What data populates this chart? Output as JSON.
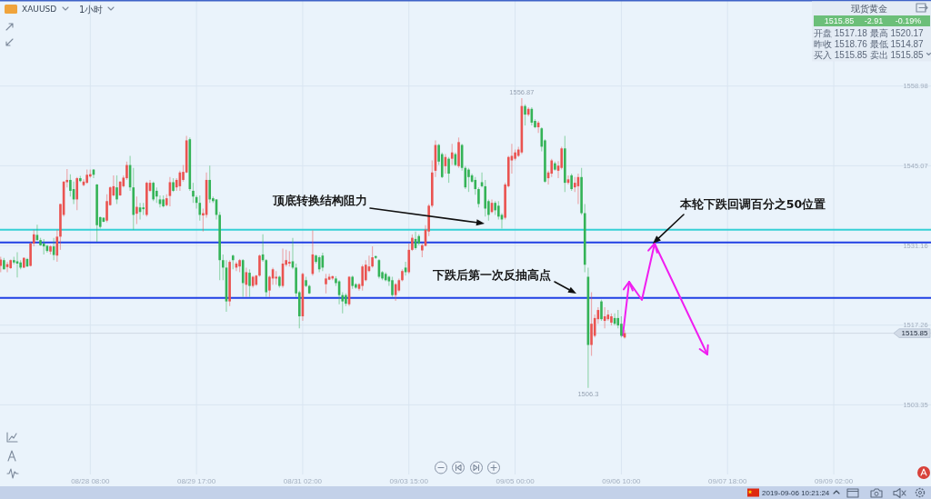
{
  "chart_data": {
    "type": "candlestick",
    "categories": [
      null,
      null,
      null,
      null,
      null,
      null,
      null,
      null,
      null,
      null,
      null,
      null,
      null,
      null,
      null,
      null,
      null,
      null,
      null,
      null,
      null,
      null,
      null,
      null,
      null,
      null,
      null,
      "08/28 08:00",
      null,
      null,
      null,
      null,
      null,
      null,
      null,
      null,
      null,
      null,
      null,
      null,
      null,
      null,
      null,
      null,
      null,
      null,
      null,
      null,
      null,
      null,
      null,
      null,
      null,
      null,
      null,
      null,
      null,
      null,
      null,
      "08/29 17:00",
      null,
      null,
      null,
      null,
      null,
      null,
      null,
      null,
      null,
      null,
      null,
      null,
      null,
      null,
      null,
      null,
      null,
      null,
      null,
      null,
      null,
      null,
      null,
      null,
      null,
      null,
      null,
      null,
      null,
      null,
      null,
      "08/31 02:00",
      null,
      null,
      null,
      null,
      null,
      null,
      null,
      null,
      null,
      null,
      null,
      null,
      null,
      null,
      null,
      null,
      null,
      null,
      null,
      null,
      null,
      null,
      null,
      null,
      null,
      null,
      null,
      null,
      null,
      null,
      null,
      "09/03 15:00",
      null,
      null,
      null,
      null,
      null,
      null,
      null,
      null,
      null,
      null,
      null,
      null,
      null,
      null,
      null,
      null,
      null,
      null,
      null,
      null,
      null,
      null,
      null,
      null,
      null,
      null,
      null,
      null,
      null,
      null,
      null,
      "09/05 00:00",
      null,
      null,
      null,
      null,
      null,
      null,
      null,
      null,
      null,
      null,
      null,
      null,
      null,
      null,
      null,
      null,
      null,
      null,
      null,
      null,
      null,
      null,
      null,
      null,
      null,
      null,
      null,
      null,
      null,
      null,
      null,
      "09/06 10:00",
      null,
      null,
      null,
      null,
      null,
      null,
      null,
      null,
      null,
      null,
      null,
      null,
      null,
      null,
      null,
      null,
      null,
      null,
      null,
      null,
      null,
      null,
      null,
      null,
      null,
      null,
      null,
      null,
      null,
      null,
      null,
      "09/07 18:00",
      null,
      null,
      null,
      null,
      null,
      null,
      null,
      null,
      null,
      null,
      null,
      null,
      null,
      null,
      null,
      null,
      null,
      null,
      null,
      null,
      null,
      null,
      null,
      null,
      null,
      null,
      null,
      null,
      null,
      null,
      null,
      "09/09 02:00",
      null,
      null,
      null,
      null,
      null,
      null,
      null,
      null,
      null,
      null,
      null,
      null,
      null,
      null,
      null,
      null,
      null,
      null,
      null,
      null,
      null,
      null,
      null,
      null,
      null,
      null,
      null,
      null,
      null
    ],
    "ohlc": [
      [
        1527.6,
        1529.2,
        1526.5,
        1528.7
      ],
      [
        1528.6,
        1529.0,
        1527.0,
        1527.0
      ],
      [
        1527.4,
        1528.3,
        1526.5,
        1527.9
      ],
      [
        1527.2,
        1528.7,
        1527.1,
        1528.6
      ],
      [
        1528.6,
        1529.2,
        1527.9,
        1528.2
      ],
      [
        1528.4,
        1530.0,
        1525.6,
        1528.0
      ],
      [
        1528.2,
        1528.6,
        1527.0,
        1527.3
      ],
      [
        1527.3,
        1529.1,
        1527.2,
        1529.0
      ],
      [
        1528.8,
        1529.0,
        1527.4,
        1527.5
      ],
      [
        1527.6,
        1531.8,
        1527.5,
        1531.5
      ],
      [
        1531.5,
        1533.9,
        1531.0,
        1533.1
      ],
      [
        1533.0,
        1534.8,
        1532.0,
        1532.1
      ],
      [
        1532.1,
        1532.5,
        1531.1,
        1531.2
      ],
      [
        1531.5,
        1532.3,
        1529.6,
        1531.0
      ],
      [
        1531.1,
        1531.3,
        1529.9,
        1530.2
      ],
      [
        1530.1,
        1531.2,
        1529.6,
        1531.0
      ],
      [
        1531.0,
        1532.5,
        1528.6,
        1529.5
      ],
      [
        1529.4,
        1533.9,
        1528.3,
        1532.7
      ],
      [
        1532.7,
        1538.4,
        1530.4,
        1538.4
      ],
      [
        1536.5,
        1542.4,
        1536.2,
        1542.3
      ],
      [
        1542.2,
        1544.5,
        1541.3,
        1542.6
      ],
      [
        1542.6,
        1543.6,
        1539.7,
        1540.7
      ],
      [
        1541.0,
        1542.3,
        1538.4,
        1539.2
      ],
      [
        1539.2,
        1543.1,
        1537.3,
        1542.9
      ],
      [
        1542.9,
        1543.3,
        1542.2,
        1542.4
      ],
      [
        1541.7,
        1542.7,
        1541.5,
        1542.3
      ],
      [
        1542.1,
        1544.4,
        1541.9,
        1543.5
      ],
      [
        1543.2,
        1544.4,
        1543.0,
        1543.6
      ],
      [
        1544.4,
        1544.5,
        1542.9,
        1543.5
      ],
      [
        1541.8,
        1541.9,
        1531.8,
        1534.7
      ],
      [
        1536.1,
        1536.2,
        1534.1,
        1534.4
      ],
      [
        1536.0,
        1536.1,
        1535.2,
        1535.3
      ],
      [
        1535.5,
        1540.1,
        1535.2,
        1538.9
      ],
      [
        1538.2,
        1541.5,
        1538.1,
        1541.3
      ],
      [
        1539.9,
        1543.4,
        1539.7,
        1541.5
      ],
      [
        1541.3,
        1543.4,
        1538.4,
        1539.2
      ],
      [
        1539.9,
        1542.4,
        1539.8,
        1542.3
      ],
      [
        1541.5,
        1543.4,
        1541.3,
        1543.0
      ],
      [
        1542.9,
        1545.8,
        1542.6,
        1545.2
      ],
      [
        1545.2,
        1546.8,
        1540.7,
        1541.3
      ],
      [
        1541.3,
        1544.7,
        1533.9,
        1536.5
      ],
      [
        1536.7,
        1539.7,
        1534.9,
        1537.9
      ],
      [
        1537.8,
        1538.6,
        1535.7,
        1537.0
      ],
      [
        1537.8,
        1538.6,
        1536.5,
        1537.5
      ],
      [
        1536.5,
        1542.3,
        1536.2,
        1542.1
      ],
      [
        1540.7,
        1542.6,
        1540.5,
        1542.1
      ],
      [
        1542.1,
        1542.3,
        1538.9,
        1539.2
      ],
      [
        1540.7,
        1541.3,
        1538.6,
        1539.7
      ],
      [
        1539.2,
        1539.9,
        1537.8,
        1538.4
      ],
      [
        1539.2,
        1539.9,
        1537.8,
        1538.0
      ],
      [
        1538.2,
        1540.1,
        1538.0,
        1539.4
      ],
      [
        1539.8,
        1543.1,
        1538.0,
        1542.2
      ],
      [
        1542.2,
        1542.9,
        1540.5,
        1540.7
      ],
      [
        1541.3,
        1542.9,
        1540.7,
        1542.6
      ],
      [
        1541.5,
        1544.2,
        1540.7,
        1543.9
      ],
      [
        1542.6,
        1545.2,
        1542.3,
        1544.0
      ],
      [
        1543.9,
        1550.3,
        1543.8,
        1549.5
      ],
      [
        1549.7,
        1550.0,
        1540.7,
        1541.0
      ],
      [
        1540.7,
        1542.1,
        1538.6,
        1539.7
      ],
      [
        1539.6,
        1539.9,
        1537.6,
        1538.6
      ],
      [
        1538.6,
        1539.9,
        1535.5,
        1536.5
      ],
      [
        1536.4,
        1537.6,
        1533.6,
        1536.8
      ],
      [
        1536.5,
        1543.9,
        1536.0,
        1542.6
      ],
      [
        1542.6,
        1545.1,
        1538.6,
        1539.2
      ],
      [
        1539.4,
        1539.7,
        1538.6,
        1538.9
      ],
      [
        1539.2,
        1539.2,
        1535.7,
        1536.5
      ],
      [
        1536.5,
        1537.0,
        1525.1,
        1528.6
      ],
      [
        1528.6,
        1529.6,
        1525.1,
        1527.3
      ],
      [
        1527.3,
        1528.6,
        1519.6,
        1521.4
      ],
      [
        1521.4,
        1528.6,
        1520.6,
        1528.3
      ],
      [
        1529.4,
        1529.6,
        1527.0,
        1528.6
      ],
      [
        1527.3,
        1528.3,
        1526.7,
        1528.0
      ],
      [
        1527.5,
        1528.8,
        1526.5,
        1528.6
      ],
      [
        1528.6,
        1528.8,
        1522.2,
        1524.6
      ],
      [
        1524.3,
        1527.3,
        1522.2,
        1526.5
      ],
      [
        1526.4,
        1527.0,
        1522.2,
        1524.1
      ],
      [
        1524.1,
        1525.9,
        1523.8,
        1525.7
      ],
      [
        1524.3,
        1526.0,
        1524.1,
        1525.9
      ],
      [
        1525.9,
        1529.6,
        1525.7,
        1529.4
      ],
      [
        1529.6,
        1533.1,
        1528.3,
        1528.6
      ],
      [
        1528.6,
        1528.8,
        1522.2,
        1523.0
      ],
      [
        1523.3,
        1525.9,
        1522.2,
        1525.7
      ],
      [
        1525.4,
        1527.3,
        1524.3,
        1527.0
      ],
      [
        1525.4,
        1526.7,
        1524.3,
        1525.7
      ],
      [
        1525.7,
        1525.9,
        1523.8,
        1524.1
      ],
      [
        1524.1,
        1530.6,
        1523.8,
        1528.0
      ],
      [
        1527.8,
        1530.4,
        1527.5,
        1528.6
      ],
      [
        1528.0,
        1530.2,
        1527.5,
        1528.3
      ],
      [
        1528.4,
        1532.5,
        1527.0,
        1527.3
      ],
      [
        1527.3,
        1528.0,
        1522.2,
        1522.8
      ],
      [
        1523.0,
        1523.3,
        1516.7,
        1518.8
      ],
      [
        1518.8,
        1526.4,
        1518.0,
        1526.2
      ],
      [
        1525.1,
        1525.7,
        1523.9,
        1524.1
      ],
      [
        1524.1,
        1524.3,
        1522.7,
        1522.8
      ],
      [
        1526.2,
        1533.8,
        1525.9,
        1529.6
      ],
      [
        1529.4,
        1529.6,
        1528.0,
        1528.3
      ],
      [
        1529.1,
        1529.4,
        1526.5,
        1527.0
      ],
      [
        1529.4,
        1529.9,
        1526.7,
        1527.3
      ],
      [
        1524.4,
        1526.2,
        1522.8,
        1525.4
      ],
      [
        1525.2,
        1526.2,
        1525.1,
        1525.7
      ],
      [
        1525.4,
        1525.9,
        1525.1,
        1525.8
      ],
      [
        1525.4,
        1525.8,
        1524.1,
        1524.6
      ],
      [
        1524.9,
        1525.1,
        1520.9,
        1522.5
      ],
      [
        1522.5,
        1523.0,
        1519.3,
        1521.4
      ],
      [
        1522.5,
        1522.8,
        1520.6,
        1521.0
      ],
      [
        1520.9,
        1525.8,
        1520.6,
        1525.7
      ],
      [
        1525.7,
        1525.9,
        1523.6,
        1524.1
      ],
      [
        1524.4,
        1524.6,
        1523.6,
        1523.8
      ],
      [
        1523.6,
        1524.6,
        1523.3,
        1524.4
      ],
      [
        1524.1,
        1527.8,
        1523.3,
        1527.5
      ],
      [
        1525.1,
        1528.6,
        1524.9,
        1527.8
      ],
      [
        1526.7,
        1529.4,
        1526.5,
        1527.5
      ],
      [
        1527.5,
        1531.0,
        1527.3,
        1529.1
      ],
      [
        1529.3,
        1529.4,
        1528.8,
        1529.0
      ],
      [
        1528.6,
        1528.8,
        1525.4,
        1525.7
      ],
      [
        1526.5,
        1526.7,
        1525.1,
        1525.4
      ],
      [
        1526.2,
        1526.5,
        1524.9,
        1525.1
      ],
      [
        1525.7,
        1525.9,
        1524.1,
        1524.9
      ],
      [
        1525.1,
        1525.7,
        1522.2,
        1522.5
      ],
      [
        1522.5,
        1524.6,
        1521.5,
        1524.4
      ],
      [
        1523.3,
        1525.4,
        1523.0,
        1525.1
      ],
      [
        1525.1,
        1527.0,
        1524.9,
        1526.7
      ],
      [
        1527.3,
        1528.3,
        1525.9,
        1526.5
      ],
      [
        1526.5,
        1531.5,
        1526.2,
        1530.4
      ],
      [
        1530.4,
        1533.1,
        1530.2,
        1532.5
      ],
      [
        1532.3,
        1533.6,
        1530.4,
        1530.7
      ],
      [
        1532.8,
        1533.1,
        1531.2,
        1531.5
      ],
      [
        1530.3,
        1531.5,
        1529.1,
        1531.2
      ],
      [
        1531.1,
        1534.7,
        1531.0,
        1533.9
      ],
      [
        1533.6,
        1538.4,
        1532.8,
        1538.1
      ],
      [
        1538.1,
        1546.0,
        1537.8,
        1543.9
      ],
      [
        1544.2,
        1549.5,
        1543.1,
        1548.7
      ],
      [
        1548.7,
        1548.9,
        1545.2,
        1545.8
      ],
      [
        1547.1,
        1547.4,
        1542.9,
        1543.1
      ],
      [
        1545.0,
        1547.1,
        1543.7,
        1546.6
      ],
      [
        1546.3,
        1546.6,
        1542.1,
        1543.7
      ],
      [
        1546.3,
        1548.9,
        1545.2,
        1547.4
      ],
      [
        1547.1,
        1547.4,
        1545.0,
        1545.2
      ],
      [
        1545.0,
        1550.0,
        1544.7,
        1549.2
      ],
      [
        1548.7,
        1548.9,
        1544.2,
        1544.7
      ],
      [
        1544.7,
        1545.0,
        1541.0,
        1541.3
      ],
      [
        1544.4,
        1544.7,
        1540.5,
        1543.1
      ],
      [
        1543.4,
        1543.7,
        1542.1,
        1542.3
      ],
      [
        1542.6,
        1543.1,
        1540.0,
        1541.0
      ],
      [
        1541.0,
        1541.3,
        1537.8,
        1538.4
      ],
      [
        1542.2,
        1543.9,
        1541.3,
        1541.5
      ],
      [
        1541.5,
        1542.6,
        1536.2,
        1537.6
      ],
      [
        1538.9,
        1539.2,
        1535.5,
        1536.5
      ],
      [
        1537.0,
        1539.2,
        1536.8,
        1538.6
      ],
      [
        1538.6,
        1538.9,
        1536.5,
        1537.3
      ],
      [
        1538.1,
        1538.9,
        1535.7,
        1536.2
      ],
      [
        1536.5,
        1536.8,
        1534.1,
        1535.7
      ],
      [
        1536.0,
        1542.1,
        1535.7,
        1541.8
      ],
      [
        1541.5,
        1546.8,
        1541.3,
        1546.6
      ],
      [
        1546.0,
        1548.9,
        1543.7,
        1546.8
      ],
      [
        1546.3,
        1547.9,
        1546.0,
        1547.4
      ],
      [
        1546.8,
        1548.4,
        1546.6,
        1547.9
      ],
      [
        1547.4,
        1556.87,
        1547.1,
        1555.5
      ],
      [
        1555.5,
        1555.8,
        1552.1,
        1554.0
      ],
      [
        1554.0,
        1555.3,
        1553.7,
        1555.0
      ],
      [
        1555.0,
        1555.3,
        1552.1,
        1552.6
      ],
      [
        1552.9,
        1553.2,
        1551.6,
        1551.8
      ],
      [
        1551.8,
        1552.9,
        1550.8,
        1552.6
      ],
      [
        1551.6,
        1551.8,
        1547.6,
        1548.4
      ],
      [
        1549.5,
        1549.7,
        1542.1,
        1542.3
      ],
      [
        1542.9,
        1544.2,
        1541.8,
        1543.9
      ],
      [
        1543.7,
        1546.3,
        1543.1,
        1546.0
      ],
      [
        1545.5,
        1545.8,
        1544.2,
        1544.4
      ],
      [
        1544.2,
        1545.9,
        1542.9,
        1545.1
      ],
      [
        1544.7,
        1548.4,
        1544.4,
        1548.1
      ],
      [
        1548.1,
        1550.3,
        1540.5,
        1542.1
      ],
      [
        1542.1,
        1543.4,
        1541.8,
        1542.7
      ],
      [
        1543.4,
        1543.7,
        1540.7,
        1541.0
      ],
      [
        1541.3,
        1543.1,
        1540.5,
        1542.1
      ],
      [
        1541.5,
        1543.7,
        1538.4,
        1543.1
      ],
      [
        1543.1,
        1544.7,
        1536.5,
        1536.8
      ],
      [
        1536.8,
        1538.4,
        1526.5,
        1527.8
      ],
      [
        1525.7,
        1527.3,
        1506.3,
        1513.8
      ],
      [
        1513.8,
        1523.0,
        1511.9,
        1517.5
      ],
      [
        1515.4,
        1519.1,
        1515.1,
        1518.5
      ],
      [
        1518.3,
        1520.4,
        1517.5,
        1519.9
      ],
      [
        1521.4,
        1521.7,
        1518.0,
        1518.3
      ],
      [
        1518.0,
        1520.4,
        1516.7,
        1518.8
      ],
      [
        1518.3,
        1519.9,
        1518.0,
        1519.1
      ],
      [
        1517.7,
        1519.3,
        1517.2,
        1518.8
      ],
      [
        1518.5,
        1519.3,
        1517.2,
        1517.5
      ],
      [
        1518.5,
        1519.9,
        1516.7,
        1517.2
      ],
      [
        1517.5,
        1518.8,
        1515.1,
        1515.4
      ],
      [
        1515.1,
        1516.4,
        1514.9,
        1515.85
      ],
      null,
      null,
      null,
      null,
      null,
      null,
      null,
      null,
      null,
      null,
      null,
      null,
      null,
      null,
      null,
      null,
      null,
      null,
      null,
      null,
      null,
      null,
      null,
      null,
      null,
      null,
      null,
      null,
      null,
      null,
      null,
      null,
      null,
      null,
      null,
      null,
      null,
      null,
      null,
      null,
      null,
      null,
      null,
      null,
      null,
      null,
      null,
      null,
      null,
      null,
      null,
      null,
      null,
      null,
      null,
      null,
      null,
      null,
      null,
      null,
      null,
      null,
      null,
      null,
      null,
      null,
      null,
      null,
      null,
      null,
      null,
      null,
      null,
      null,
      null,
      null,
      null,
      null,
      null,
      null,
      null,
      null,
      null,
      null,
      null,
      null,
      null,
      null,
      null,
      null,
      null,
      null
    ],
    "ylim": [
      1491.2,
      1574.0
    ],
    "yticks": [
      1558.98,
      1545.07,
      1531.16,
      1517.26,
      1503.35
    ],
    "grid": true,
    "ref_lines": [
      {
        "axis": "y",
        "value": 1533.9,
        "color": "#36d0d6"
      },
      {
        "axis": "y",
        "value": 1531.7,
        "color": "#1f3fe4"
      },
      {
        "axis": "y",
        "value": 1522.0,
        "color": "#1f3fe4"
      },
      {
        "axis": "y",
        "value": 1515.85,
        "label": "1515.85",
        "color": "#d0d9e4"
      }
    ],
    "annotations": [
      "XAUUSD",
      "1小时",
      "顶底转换结构阻力",
      "下跌后第一次反抽高点",
      "本轮下跌回调百分之50位置",
      {
        "text": "1556.87",
        "y": 1556.87
      },
      {
        "text": "1506.3",
        "y": 1506.3
      },
      "现货黄金",
      "1515.85",
      "-2.91",
      "-0.19%",
      "开盘 1517.18 最高 1520.17",
      "昨收 1518.76 最低 1514.87",
      "买入 1515.85 卖出 1515.85",
      "2019-09-06 10:21:24"
    ]
  }
}
